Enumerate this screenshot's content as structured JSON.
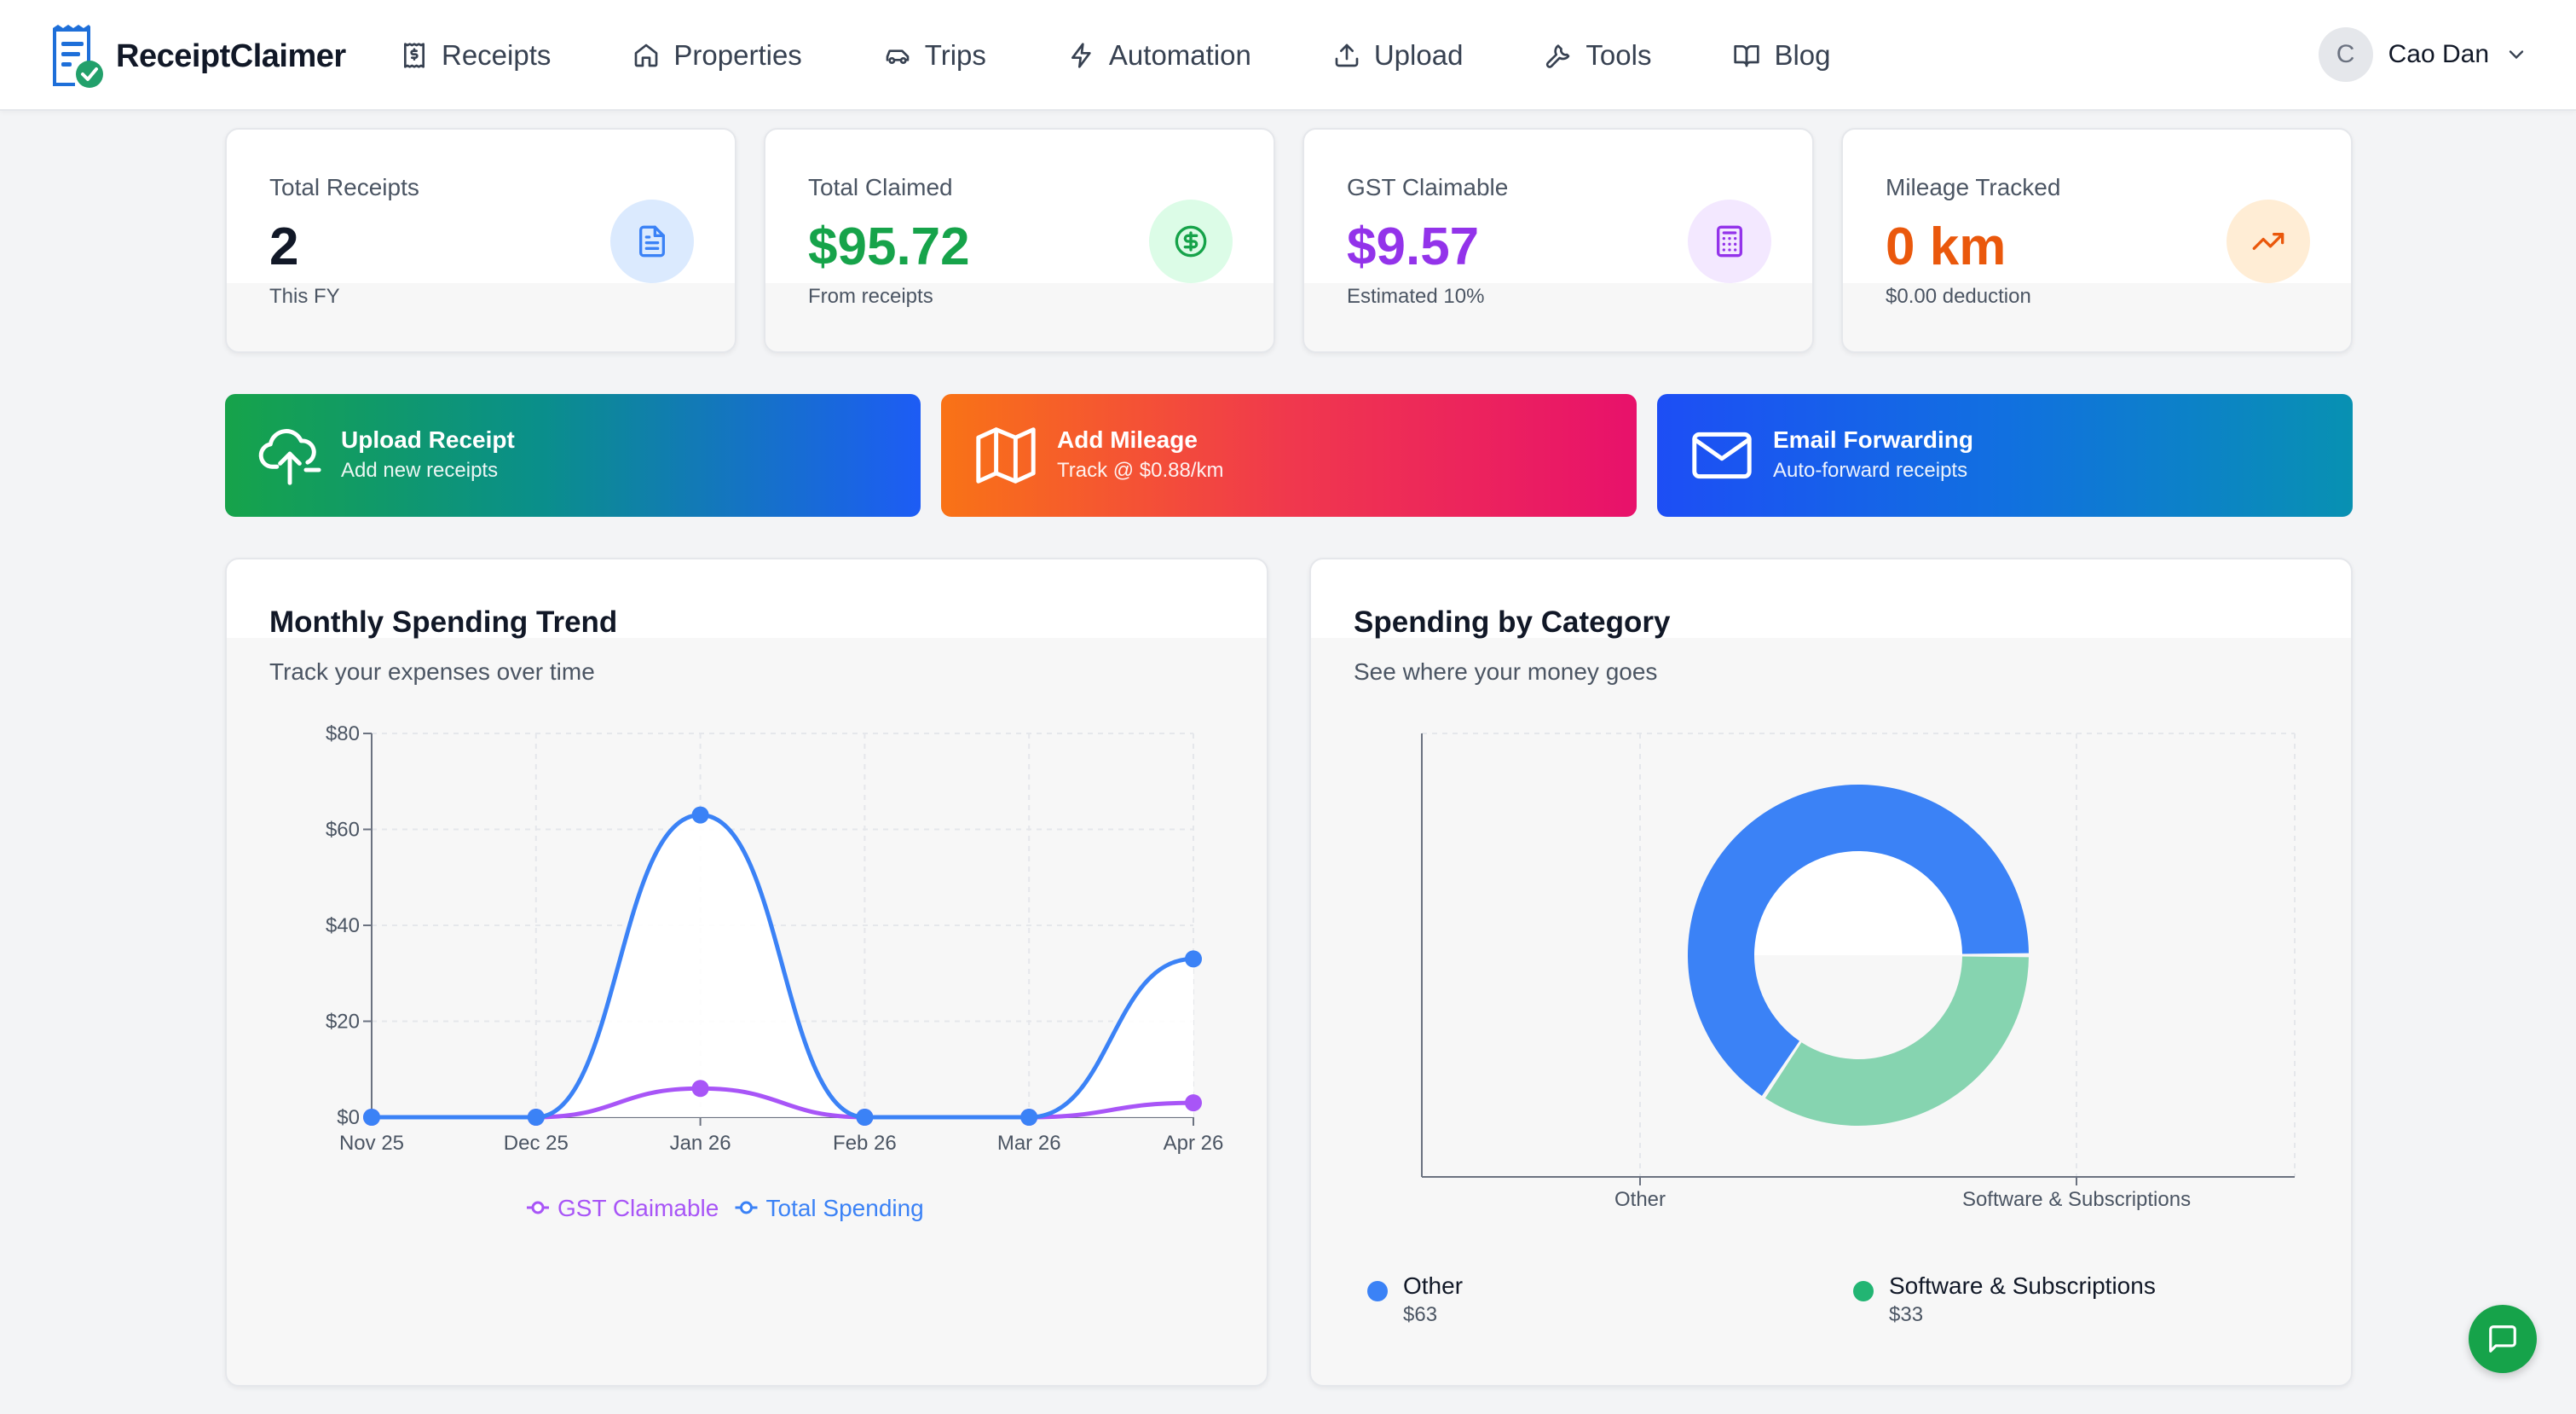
{
  "app": {
    "name": "ReceiptClaimer"
  },
  "nav": [
    {
      "label": "Receipts",
      "icon": "receipt-icon"
    },
    {
      "label": "Properties",
      "icon": "home-icon"
    },
    {
      "label": "Trips",
      "icon": "car-icon"
    },
    {
      "label": "Automation",
      "icon": "lightning-icon"
    },
    {
      "label": "Upload",
      "icon": "upload-icon"
    },
    {
      "label": "Tools",
      "icon": "wrench-icon"
    },
    {
      "label": "Blog",
      "icon": "book-icon"
    }
  ],
  "user": {
    "initial": "C",
    "name": "Cao Dan"
  },
  "stats": [
    {
      "label": "Total Receipts",
      "value": "2",
      "sub": "This FY",
      "color": "#111827",
      "icon": "document-icon",
      "icon_bg": "#dbeafe",
      "icon_color": "#3b82f6"
    },
    {
      "label": "Total Claimed",
      "value": "$95.72",
      "sub": "From receipts",
      "color": "#16a34a",
      "icon": "dollar-icon",
      "icon_bg": "#dcfce7",
      "icon_color": "#16a34a"
    },
    {
      "label": "GST Claimable",
      "value": "$9.57",
      "sub": "Estimated 10%",
      "color": "#9333ea",
      "icon": "calculator-icon",
      "icon_bg": "#f3e8ff",
      "icon_color": "#9333ea"
    },
    {
      "label": "Mileage Tracked",
      "value": "0 km",
      "sub": "$0.00 deduction",
      "color": "#ea580c",
      "icon": "trending-up-icon",
      "icon_bg": "#ffedd5",
      "icon_color": "#ea580c"
    }
  ],
  "actions": [
    {
      "title": "Upload Receipt",
      "sub": "Add new receipts",
      "icon": "cloud-upload-icon",
      "from": "#16a34a",
      "to": "#1d5cf5"
    },
    {
      "title": "Add Mileage",
      "sub": "Track @ $0.88/km",
      "icon": "map-icon",
      "from": "#f97316",
      "to": "#e8116b"
    },
    {
      "title": "Email Forwarding",
      "sub": "Auto-forward receipts",
      "icon": "mail-icon",
      "from": "#1d4ef5",
      "to": "#0891b2"
    }
  ],
  "trend": {
    "title": "Monthly Spending Trend",
    "subtitle": "Track your expenses over time"
  },
  "category": {
    "title": "Spending by Category",
    "subtitle": "See where your money goes",
    "legend": [
      {
        "name": "Other",
        "value": "$63"
      },
      {
        "name": "Software & Subscriptions",
        "value": "$33"
      }
    ]
  },
  "chart_data": [
    {
      "type": "line",
      "x": [
        "Nov 25",
        "Dec 25",
        "Jan 26",
        "Feb 26",
        "Mar 26",
        "Apr 26"
      ],
      "series": [
        {
          "name": "GST Claimable",
          "values": [
            0,
            0,
            6,
            0,
            0,
            3
          ],
          "color": "#a855f7"
        },
        {
          "name": "Total Spending",
          "values": [
            0,
            0,
            63,
            0,
            0,
            33
          ],
          "color": "#3b82f6"
        }
      ],
      "yticks": [
        "$0",
        "$20",
        "$40",
        "$60",
        "$80"
      ],
      "ylim": [
        0,
        80
      ],
      "grid": true,
      "legend_position": "bottom"
    },
    {
      "type": "pie",
      "categories": [
        "Other",
        "Software & Subscriptions"
      ],
      "values": [
        63,
        33
      ],
      "colors": [
        "#3b82f6",
        "#86d4b0"
      ],
      "donut": true,
      "xticks": [
        "Other",
        "Software & Subscriptions"
      ],
      "grid": true
    }
  ],
  "chat": {
    "icon": "chat-icon"
  }
}
